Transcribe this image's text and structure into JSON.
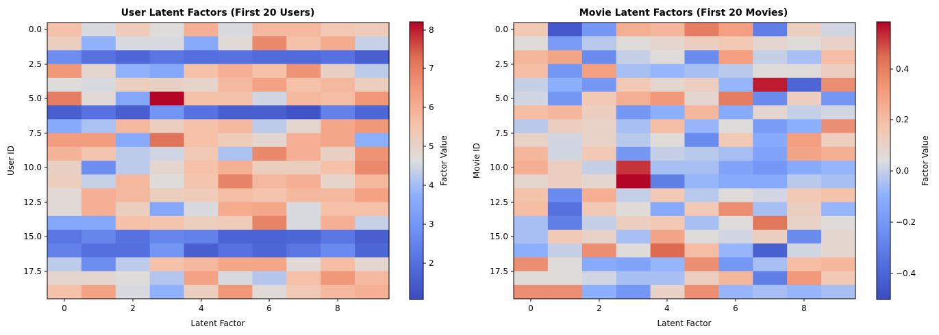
{
  "chart_data": [
    {
      "type": "heatmap",
      "title": "User Latent Factors (First 20 Users)",
      "xlabel": "Latent Factor",
      "ylabel": "User ID",
      "colorbar_label": "Factor Value",
      "x_ticks": [
        "0",
        "2",
        "4",
        "6",
        "8"
      ],
      "y_ticks": [
        "0.0",
        "2.5",
        "5.0",
        "7.5",
        "10.0",
        "12.5",
        "15.0",
        "17.5"
      ],
      "colorbar_ticks": [
        "2",
        "3",
        "4",
        "5",
        "6",
        "7",
        "8"
      ],
      "vmin": 1.1,
      "vmax": 8.2,
      "rows": 20,
      "cols": 10,
      "values": [
        [
          5.6,
          4.6,
          5.3,
          4.7,
          6.0,
          4.6,
          5.8,
          5.8,
          5.4,
          5.3
        ],
        [
          5.2,
          3.8,
          4.6,
          4.6,
          3.6,
          4.8,
          6.8,
          5.6,
          6.1,
          4.4
        ],
        [
          2.8,
          2.1,
          1.8,
          2.2,
          2.0,
          2.1,
          1.9,
          1.9,
          2.1,
          1.6
        ],
        [
          6.5,
          4.9,
          3.8,
          3.5,
          5.6,
          6.0,
          5.6,
          6.6,
          5.1,
          4.3
        ],
        [
          4.7,
          4.6,
          5.2,
          5.1,
          5.0,
          5.8,
          6.3,
          5.6,
          5.8,
          5.2
        ],
        [
          7.0,
          4.8,
          3.5,
          8.2,
          5.6,
          5.6,
          4.5,
          5.8,
          5.7,
          6.5
        ],
        [
          1.6,
          2.1,
          1.6,
          3.0,
          2.1,
          1.6,
          1.6,
          1.3,
          2.5,
          1.8
        ],
        [
          3.6,
          4.1,
          5.8,
          5.2,
          5.6,
          5.8,
          4.3,
          4.9,
          6.2,
          6.5
        ],
        [
          6.4,
          6.4,
          3.6,
          7.2,
          5.6,
          5.3,
          4.9,
          6.0,
          6.2,
          3.7
        ],
        [
          5.9,
          5.5,
          4.3,
          4.5,
          5.4,
          4.1,
          6.8,
          6.0,
          5.1,
          6.6
        ],
        [
          5.1,
          2.8,
          4.3,
          4.9,
          5.6,
          6.0,
          5.2,
          5.2,
          5.6,
          6.8
        ],
        [
          5.2,
          4.4,
          5.8,
          4.7,
          5.5,
          6.9,
          5.8,
          6.0,
          5.0,
          5.8
        ],
        [
          4.8,
          6.0,
          5.8,
          5.2,
          5.3,
          5.7,
          5.5,
          5.8,
          5.8,
          6.3
        ],
        [
          4.8,
          6.0,
          5.2,
          3.5,
          4.6,
          6.1,
          6.2,
          4.6,
          5.6,
          5.6
        ],
        [
          3.5,
          3.5,
          5.6,
          5.5,
          5.2,
          5.3,
          6.9,
          4.6,
          6.0,
          4.4
        ],
        [
          2.2,
          2.6,
          2.1,
          2.6,
          2.5,
          1.7,
          1.7,
          1.8,
          2.2,
          1.6
        ],
        [
          2.5,
          2.0,
          2.0,
          3.0,
          1.6,
          2.1,
          1.8,
          2.2,
          2.7,
          1.8
        ],
        [
          4.3,
          2.8,
          4.3,
          5.6,
          5.8,
          6.2,
          6.2,
          4.8,
          5.7,
          4.9
        ],
        [
          4.9,
          4.9,
          4.7,
          4.2,
          6.3,
          4.6,
          4.2,
          5.6,
          6.5,
          5.8
        ],
        [
          5.6,
          6.3,
          4.6,
          3.8,
          5.2,
          6.5,
          4.8,
          5.4,
          5.8,
          6.0
        ]
      ]
    },
    {
      "type": "heatmap",
      "title": "Movie Latent Factors (First 20 Movies)",
      "xlabel": "Latent Factor",
      "ylabel": "Movie ID",
      "colorbar_label": "Factor Value",
      "x_ticks": [
        "0",
        "2",
        "4",
        "6",
        "8"
      ],
      "y_ticks": [
        "0.0",
        "2.5",
        "5.0",
        "7.5",
        "10.0",
        "12.5",
        "15.0",
        "17.5"
      ],
      "colorbar_ticks": [
        "−0.4",
        "−0.2",
        "0.0",
        "0.2",
        "0.4"
      ],
      "vmin": -0.5,
      "vmax": 0.58,
      "rows": 20,
      "cols": 10,
      "values": [
        [
          0.15,
          -0.45,
          -0.2,
          0.25,
          0.22,
          0.4,
          0.3,
          -0.3,
          0.12,
          0.02
        ],
        [
          0.05,
          -0.18,
          -0.02,
          0.05,
          0.08,
          0.12,
          0.15,
          0.08,
          0.05,
          0.1
        ],
        [
          0.22,
          0.28,
          -0.25,
          0.0,
          0.05,
          -0.25,
          0.3,
          0.0,
          -0.05,
          0.2
        ],
        [
          0.2,
          -0.2,
          0.3,
          -0.05,
          -0.08,
          -0.05,
          -0.02,
          0.05,
          0.05,
          0.12
        ],
        [
          0.0,
          -0.1,
          -0.2,
          0.15,
          0.08,
          0.12,
          -0.08,
          0.55,
          -0.4,
          0.35
        ],
        [
          0.02,
          -0.2,
          0.15,
          0.25,
          0.32,
          0.08,
          0.4,
          -0.25,
          0.12,
          -0.2
        ],
        [
          0.2,
          0.22,
          0.12,
          -0.2,
          -0.1,
          0.22,
          -0.12,
          0.08,
          0.0,
          0.02
        ],
        [
          -0.02,
          0.12,
          0.1,
          -0.05,
          0.2,
          -0.08,
          0.05,
          -0.18,
          -0.1,
          0.35
        ],
        [
          0.1,
          0.02,
          0.1,
          -0.02,
          0.05,
          -0.25,
          0.15,
          -0.12,
          0.3,
          0.12
        ],
        [
          0.22,
          0.02,
          0.15,
          -0.2,
          0.0,
          -0.02,
          -0.05,
          -0.15,
          0.28,
          0.25
        ],
        [
          0.25,
          0.12,
          0.0,
          0.52,
          -0.05,
          -0.05,
          -0.15,
          -0.2,
          -0.12,
          -0.08
        ],
        [
          0.08,
          0.12,
          0.08,
          0.58,
          -0.3,
          -0.08,
          -0.12,
          -0.12,
          -0.02,
          -0.05
        ],
        [
          0.18,
          -0.25,
          0.25,
          0.0,
          0.15,
          -0.02,
          0.05,
          0.02,
          0.15,
          0.18
        ],
        [
          0.2,
          -0.35,
          0.15,
          0.05,
          -0.12,
          0.15,
          0.35,
          -0.05,
          0.12,
          -0.08
        ],
        [
          -0.05,
          -0.3,
          0.0,
          0.12,
          0.15,
          -0.05,
          0.05,
          0.42,
          0.1,
          0.05
        ],
        [
          -0.05,
          0.15,
          0.1,
          -0.05,
          0.28,
          0.05,
          0.02,
          0.12,
          -0.25,
          0.08
        ],
        [
          -0.1,
          0.0,
          0.35,
          0.05,
          0.45,
          0.2,
          -0.08,
          -0.42,
          0.02,
          0.08
        ],
        [
          0.35,
          0.05,
          -0.12,
          -0.15,
          -0.08,
          0.35,
          -0.2,
          -0.05,
          0.2,
          0.22
        ],
        [
          0.05,
          0.05,
          0.02,
          -0.05,
          -0.05,
          0.12,
          0.22,
          -0.3,
          0.32,
          0.15
        ],
        [
          0.35,
          0.35,
          -0.1,
          -0.2,
          0.1,
          0.35,
          -0.08,
          -0.05,
          -0.08,
          -0.05
        ]
      ]
    }
  ]
}
